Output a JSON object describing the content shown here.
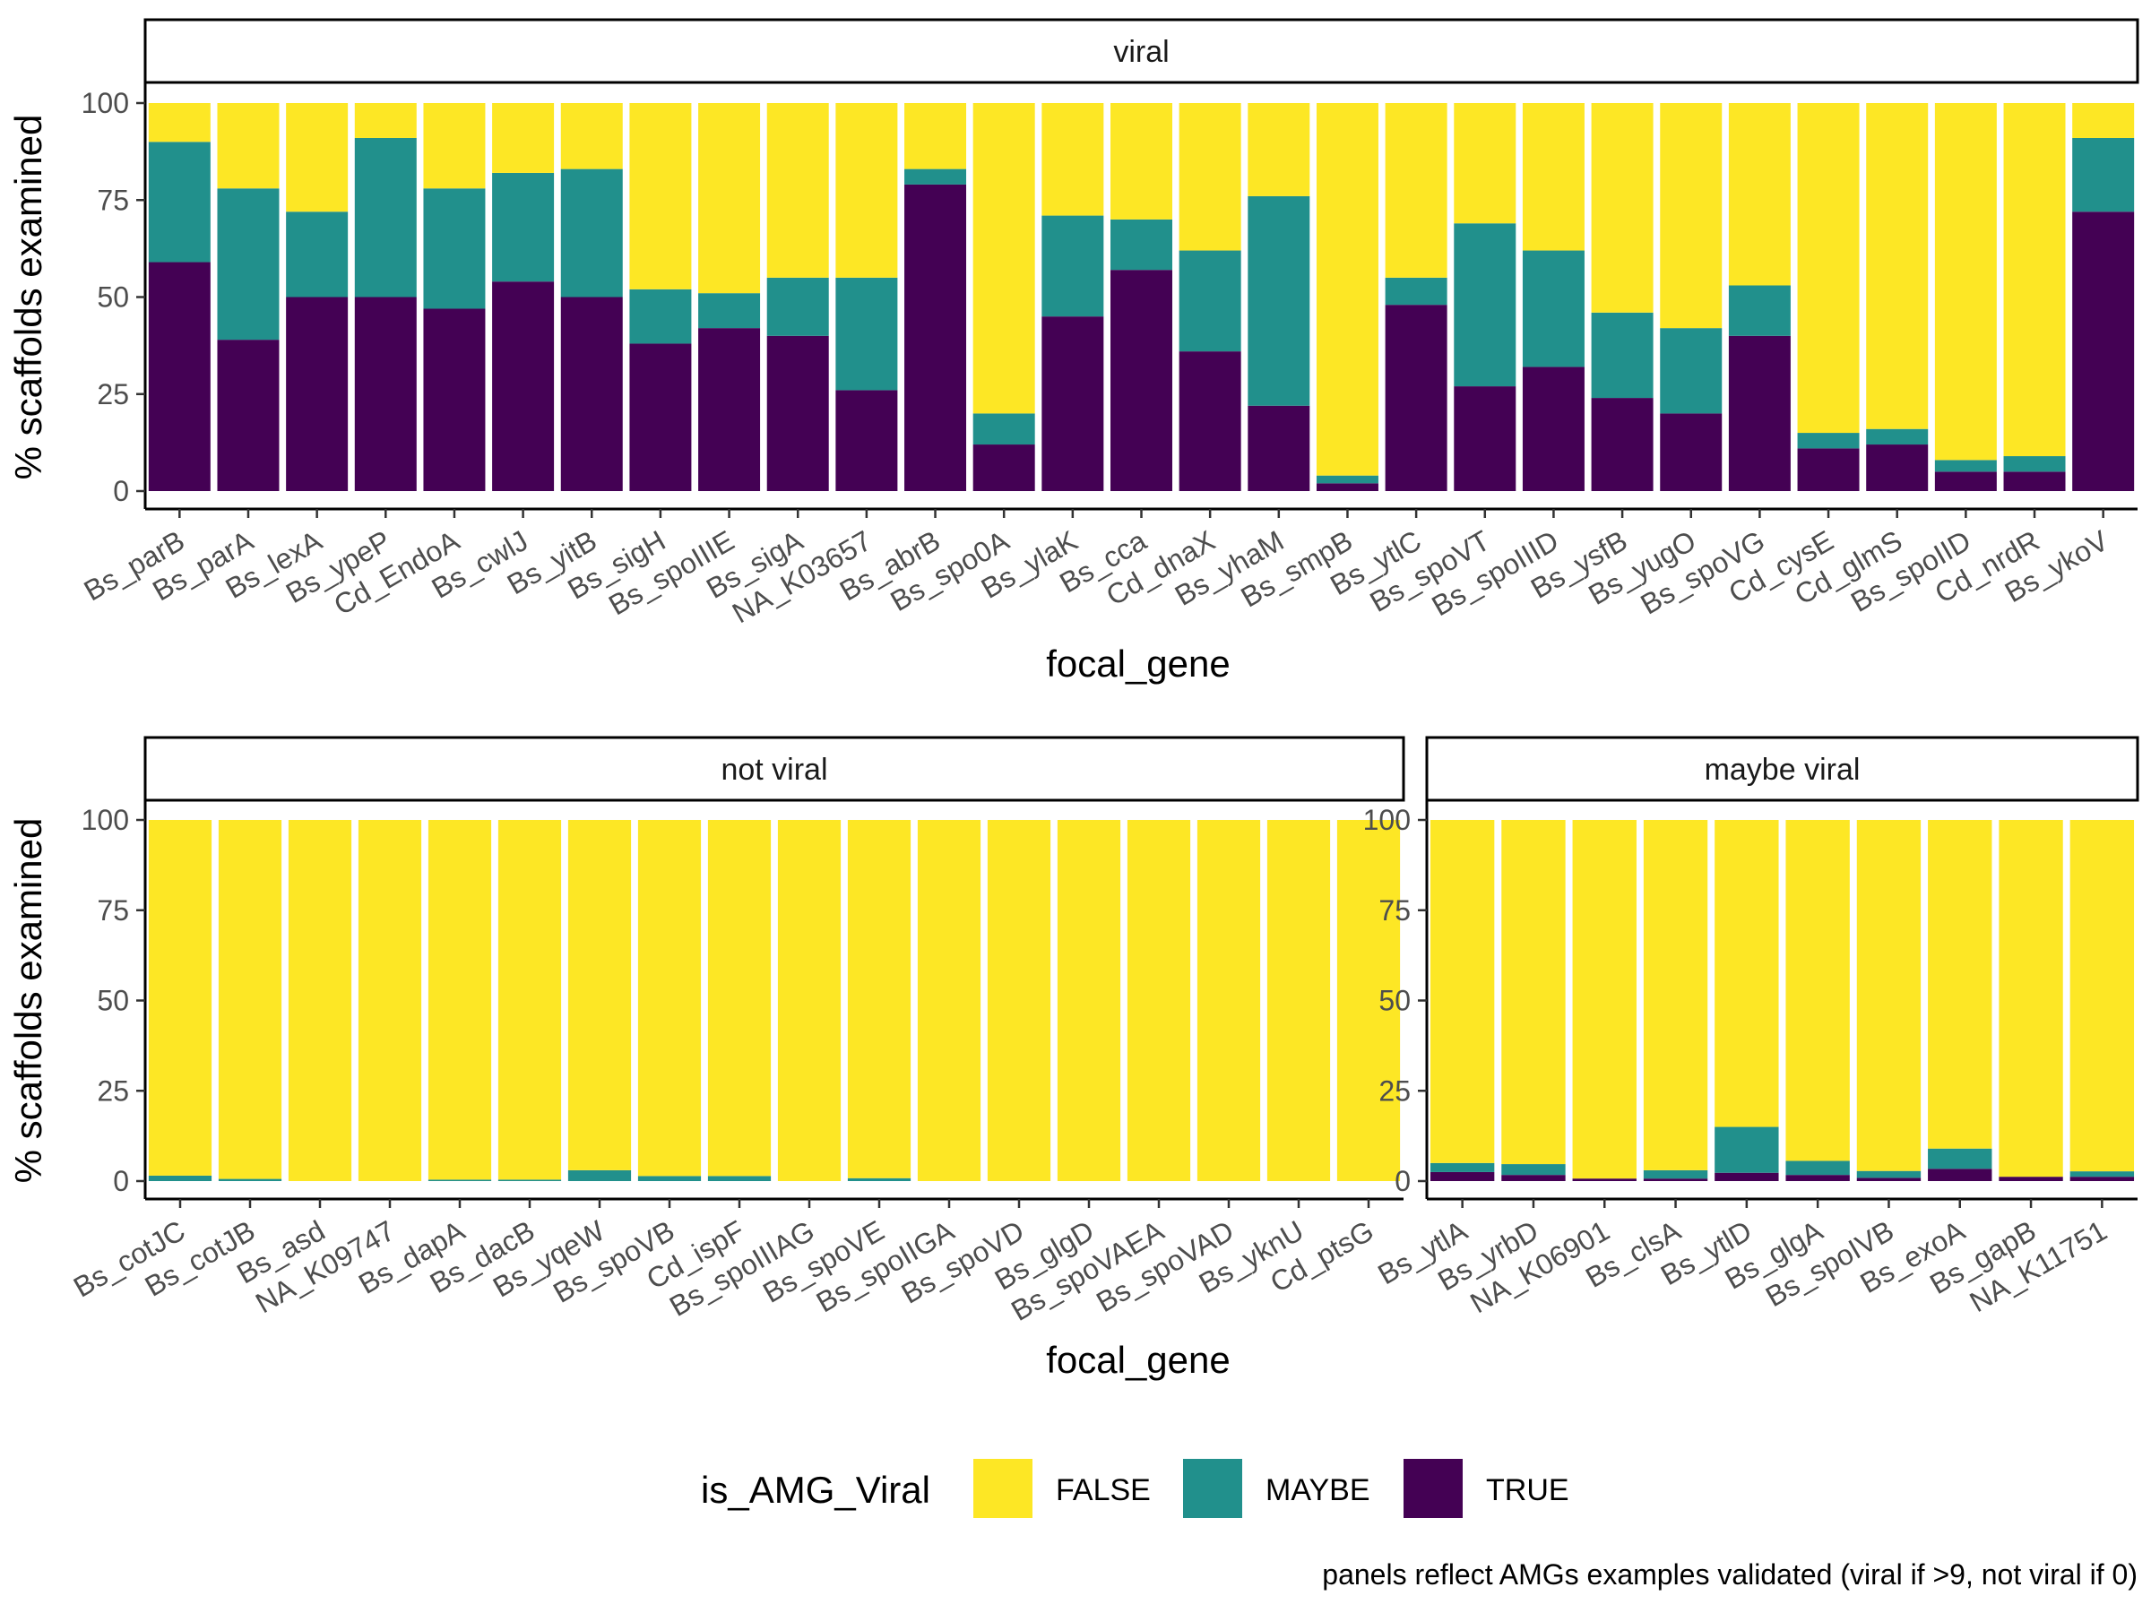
{
  "chart_data": [
    {
      "type": "bar",
      "stacked": true,
      "facet": "viral",
      "xlabel": "focal_gene",
      "ylabel": "% scaffolds examined",
      "ylim": [
        0,
        100
      ],
      "yticks": [
        0,
        25,
        50,
        75,
        100
      ],
      "categories": [
        "Bs_parB",
        "Bs_parA",
        "Bs_lexA",
        "Bs_ypeP",
        "Cd_EndoA",
        "Bs_cwlJ",
        "Bs_yitB",
        "Bs_sigH",
        "Bs_spoIIIE",
        "Bs_sigA",
        "NA_K03657",
        "Bs_abrB",
        "Bs_spo0A",
        "Bs_ylaK",
        "Bs_cca",
        "Cd_dnaX",
        "Bs_yhaM",
        "Bs_smpB",
        "Bs_ytlC",
        "Bs_spoVT",
        "Bs_spoIIID",
        "Bs_ysfB",
        "Bs_yugO",
        "Bs_spoVG",
        "Cd_cysE",
        "Cd_glmS",
        "Bs_spoIID",
        "Cd_nrdR",
        "Bs_ykoV"
      ],
      "series": [
        {
          "name": "TRUE",
          "values": [
            59,
            39,
            50,
            50,
            47,
            54,
            50,
            38,
            42,
            40,
            26,
            79,
            12,
            45,
            57,
            36,
            22,
            2,
            48,
            27,
            32,
            24,
            20,
            40,
            11,
            12,
            5,
            5,
            72
          ]
        },
        {
          "name": "MAYBE",
          "values": [
            31,
            39,
            22,
            41,
            31,
            28,
            33,
            14,
            9,
            15,
            29,
            4,
            8,
            26,
            13,
            26,
            54,
            2,
            7,
            42,
            30,
            22,
            22,
            13,
            4,
            4,
            3,
            4,
            19
          ]
        },
        {
          "name": "FALSE",
          "values": [
            10,
            22,
            28,
            9,
            22,
            18,
            17,
            48,
            49,
            45,
            45,
            17,
            80,
            29,
            30,
            38,
            24,
            96,
            45,
            31,
            38,
            54,
            58,
            47,
            85,
            84,
            92,
            91,
            9
          ]
        }
      ]
    },
    {
      "type": "bar",
      "stacked": true,
      "facet": "not viral",
      "xlabel": "focal_gene",
      "ylabel": "% scaffolds examined",
      "ylim": [
        0,
        100
      ],
      "yticks": [
        0,
        25,
        50,
        75,
        100
      ],
      "categories": [
        "Bs_cotJC",
        "Bs_cotJB",
        "Bs_asd",
        "NA_K09747",
        "Bs_dapA",
        "Bs_dacB",
        "Bs_yqeW",
        "Bs_spoVB",
        "Cd_ispF",
        "Bs_spoIIIAG",
        "Bs_spoVE",
        "Bs_spoIIGA",
        "Bs_spoVD",
        "Bs_glgD",
        "Bs_spoVAEA",
        "Bs_spoVAD",
        "Bs_yknU",
        "Cd_ptsG"
      ],
      "series": [
        {
          "name": "TRUE",
          "values": [
            0,
            0,
            0,
            0,
            0,
            0,
            0,
            0,
            0,
            0,
            0,
            0,
            0,
            0,
            0,
            0,
            0,
            0
          ]
        },
        {
          "name": "MAYBE",
          "values": [
            1.5,
            0.6,
            0,
            0,
            0.4,
            0.4,
            3,
            1.4,
            1.4,
            0,
            0.8,
            0,
            0,
            0,
            0,
            0,
            0,
            0
          ]
        },
        {
          "name": "FALSE",
          "values": [
            98.5,
            99.4,
            100,
            100,
            99.6,
            99.6,
            97,
            98.6,
            98.6,
            100,
            99.2,
            100,
            100,
            100,
            100,
            100,
            100,
            100
          ]
        }
      ]
    },
    {
      "type": "bar",
      "stacked": true,
      "facet": "maybe viral",
      "xlabel": "focal_gene",
      "ylabel": "% scaffolds examined",
      "ylim": [
        0,
        100
      ],
      "yticks": [
        0,
        25,
        50,
        75,
        100
      ],
      "categories": [
        "Bs_ytlA",
        "Bs_yrbD",
        "NA_K06901",
        "Bs_clsA",
        "Bs_ytlD",
        "Bs_glgA",
        "Bs_spoIVB",
        "Bs_exoA",
        "Bs_gapB",
        "NA_K11751"
      ],
      "series": [
        {
          "name": "TRUE",
          "values": [
            2.5,
            1.7,
            0.7,
            0.7,
            2.3,
            1.7,
            0.9,
            3.4,
            1.2,
            1.2
          ]
        },
        {
          "name": "MAYBE",
          "values": [
            2.5,
            3.0,
            0,
            2.3,
            12.7,
            3.9,
            1.9,
            5.6,
            0,
            1.5
          ]
        },
        {
          "name": "FALSE",
          "values": [
            95,
            95.3,
            99.3,
            97,
            85,
            94.4,
            97.2,
            91,
            98.8,
            97.3
          ]
        }
      ]
    }
  ],
  "legend": {
    "title": "is_AMG_Viral",
    "items": [
      {
        "label": "FALSE",
        "color": "#FDE725"
      },
      {
        "label": "MAYBE",
        "color": "#21908C"
      },
      {
        "label": "TRUE",
        "color": "#440154"
      }
    ]
  },
  "caption": "panels reflect AMGs examples validated (viral if >9, not viral if 0)"
}
